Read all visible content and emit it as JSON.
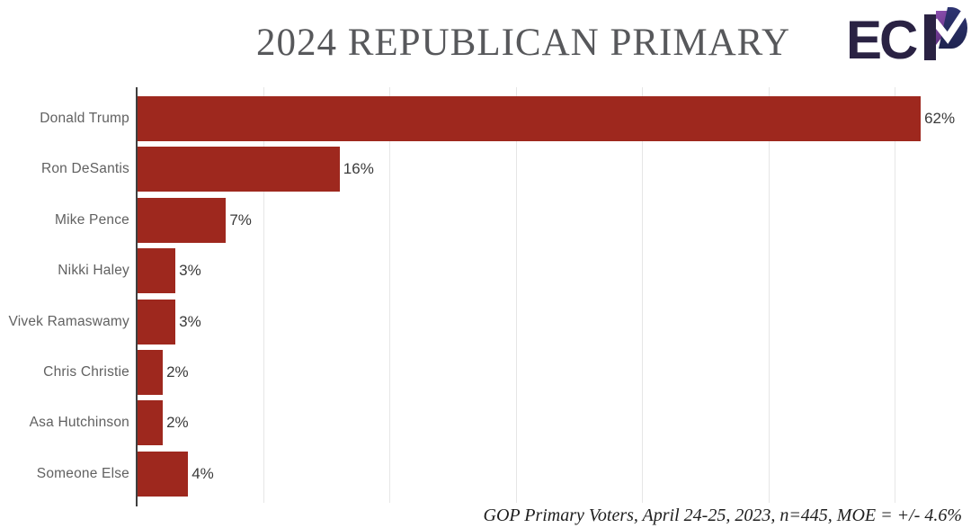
{
  "header": {
    "title": "2024 REPUBLICAN PRIMARY",
    "logo": {
      "text": "ECP",
      "ec_part": "EC"
    }
  },
  "chart_data": {
    "type": "bar",
    "orientation": "horizontal",
    "title": "2024 REPUBLICAN PRIMARY",
    "categories": [
      "Donald Trump",
      "Ron DeSantis",
      "Mike Pence",
      "Nikki Haley",
      "Vivek Ramaswamy",
      "Chris Christie",
      "Asa Hutchinson",
      "Someone Else"
    ],
    "values": [
      62,
      16,
      7,
      3,
      3,
      2,
      2,
      4
    ],
    "value_labels": [
      "62%",
      "16%",
      "7%",
      "3%",
      "3%",
      "2%",
      "2%",
      "4%"
    ],
    "xlabel": "",
    "ylabel": "",
    "xlim": [
      0,
      66
    ],
    "gridline_interval": 10,
    "grid": true,
    "legend": false,
    "tick_labels_shown": false,
    "bar_color": "#9e281e",
    "gridline_color": "#e6e6e6",
    "axis_color": "#3f3f3f"
  },
  "footer": {
    "note": "GOP Primary Voters, April 24-25, 2023, n=445, MOE = +/- 4.6%"
  },
  "colors": {
    "background": "#ffffff",
    "title_text": "#57585b",
    "category_label_text": "#616161",
    "value_label_text": "#3a3a3a",
    "logo_dark": "#2a2243",
    "logo_purple_light": "#8a4fae",
    "logo_purple_dark": "#5b2c7c",
    "logo_blue": "#262b5e"
  }
}
